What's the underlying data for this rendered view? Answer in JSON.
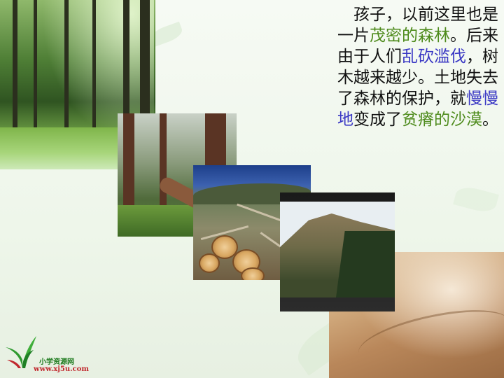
{
  "slide": {
    "paragraph": [
      {
        "text": "　孩子，以前这里也是一片",
        "style": "normal"
      },
      {
        "text": "茂密的森林",
        "style": "green"
      },
      {
        "text": "。后来由于人们",
        "style": "normal"
      },
      {
        "text": "乱砍滥伐",
        "style": "blue"
      },
      {
        "text": "，树木越来越少。土地失去了森林的保护，就",
        "style": "normal"
      },
      {
        "text": "慢慢地",
        "style": "blue"
      },
      {
        "text": "变成了",
        "style": "normal"
      },
      {
        "text": "贫瘠的沙漠",
        "style": "green"
      },
      {
        "text": "。",
        "style": "normal"
      }
    ],
    "colors": {
      "green": "#4e8b1c",
      "blue": "#3a38c4"
    }
  },
  "logo": {
    "name": "小学资源网",
    "url": "www.xj5u.com"
  }
}
